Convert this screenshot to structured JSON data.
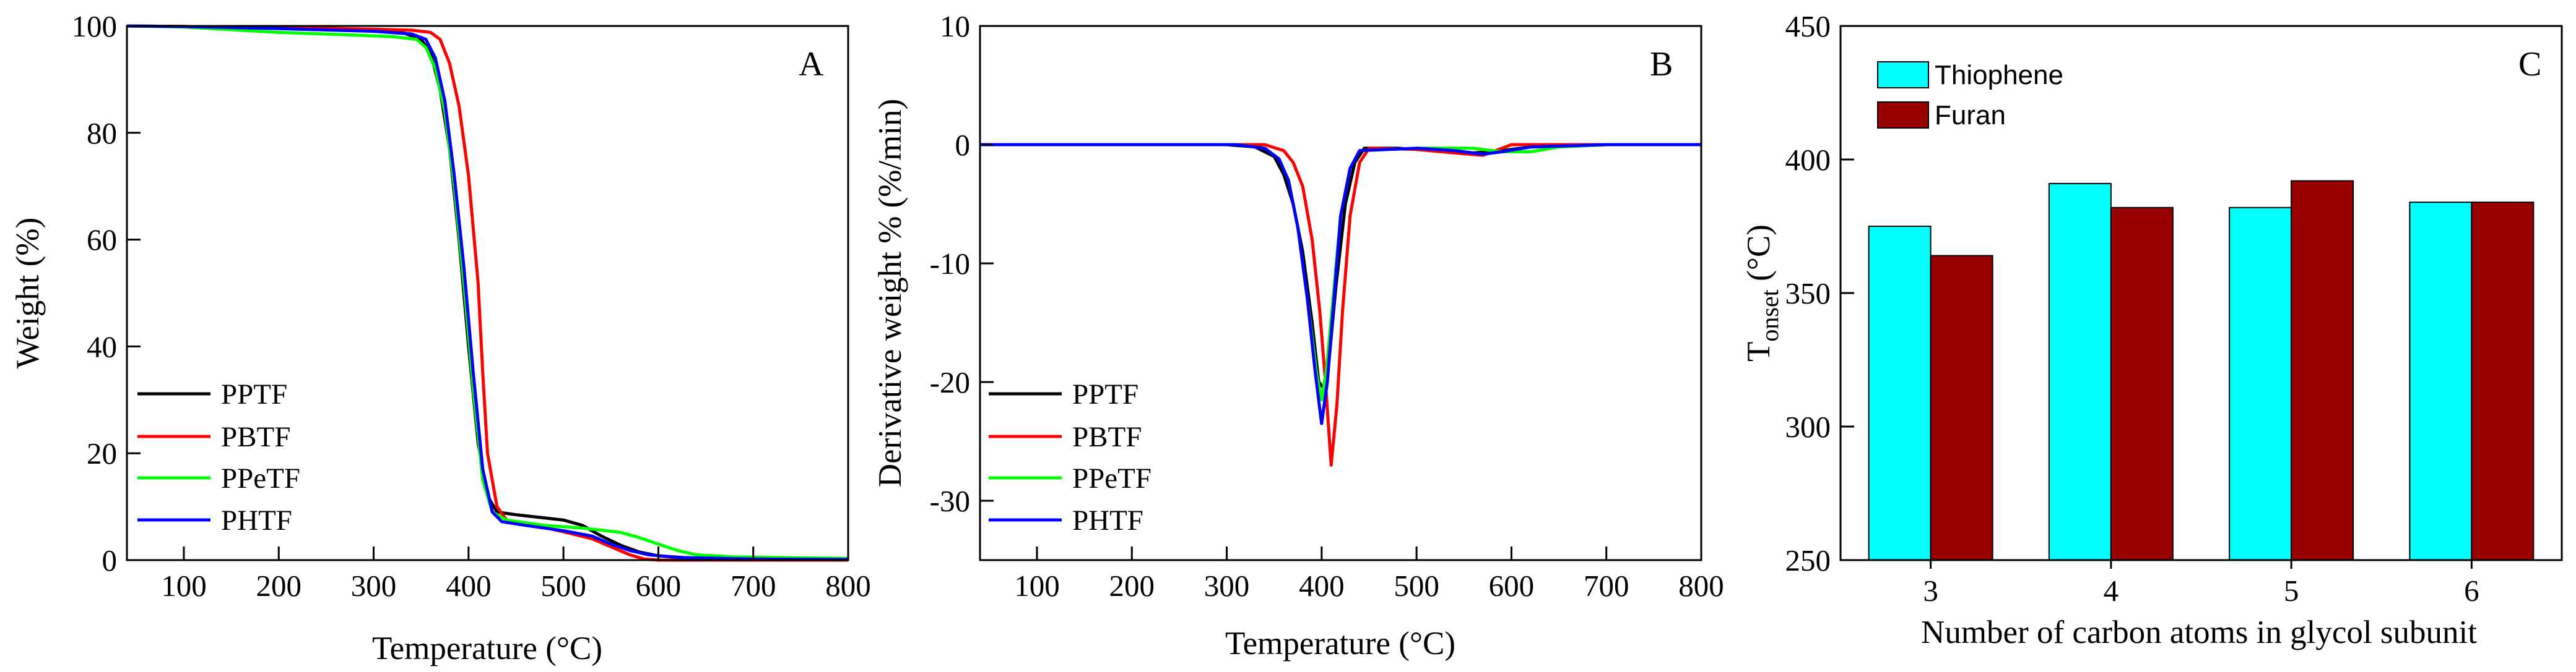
{
  "chart_data": [
    {
      "type": "line",
      "panel_label": "A",
      "xlabel": "Temperature (°C)",
      "ylabel": "Weight (%)",
      "xlim": [
        40,
        800
      ],
      "ylim": [
        0,
        100
      ],
      "xticks": [
        100,
        200,
        300,
        400,
        500,
        600,
        700,
        800
      ],
      "yticks": [
        0,
        20,
        40,
        60,
        80,
        100
      ],
      "legend": [
        "PPTF",
        "PBTF",
        "PPeTF",
        "PHTF"
      ],
      "series": [
        {
          "name": "PPTF",
          "color": "#000000",
          "points": [
            [
              40,
              100
            ],
            [
              100,
              99.9
            ],
            [
              200,
              99.6
            ],
            [
              300,
              99.2
            ],
            [
              330,
              98.8
            ],
            [
              350,
              97.5
            ],
            [
              360,
              95
            ],
            [
              370,
              88
            ],
            [
              380,
              77
            ],
            [
              390,
              60
            ],
            [
              400,
              40
            ],
            [
              410,
              22
            ],
            [
              420,
              12
            ],
            [
              430,
              9
            ],
            [
              450,
              8.5
            ],
            [
              500,
              7.5
            ],
            [
              520,
              6.5
            ],
            [
              540,
              4.5
            ],
            [
              560,
              2.8
            ],
            [
              580,
              1.5
            ],
            [
              600,
              0.8
            ],
            [
              650,
              0.2
            ],
            [
              800,
              0
            ]
          ]
        },
        {
          "name": "PBTF",
          "color": "#ff0000",
          "points": [
            [
              40,
              100
            ],
            [
              100,
              99.9
            ],
            [
              200,
              99.7
            ],
            [
              300,
              99.4
            ],
            [
              340,
              99.2
            ],
            [
              360,
              98.8
            ],
            [
              370,
              97.5
            ],
            [
              380,
              93
            ],
            [
              390,
              85
            ],
            [
              400,
              72
            ],
            [
              410,
              52
            ],
            [
              415,
              35
            ],
            [
              420,
              20
            ],
            [
              430,
              10
            ],
            [
              440,
              7.5
            ],
            [
              470,
              6.5
            ],
            [
              500,
              5.3
            ],
            [
              530,
              4
            ],
            [
              550,
              2.5
            ],
            [
              570,
              1
            ],
            [
              585,
              0.2
            ],
            [
              600,
              0
            ],
            [
              800,
              0
            ]
          ]
        },
        {
          "name": "PPeTF",
          "color": "#00ff00",
          "points": [
            [
              40,
              100
            ],
            [
              100,
              99.8
            ],
            [
              200,
              98.8
            ],
            [
              280,
              98.3
            ],
            [
              320,
              98
            ],
            [
              345,
              97.5
            ],
            [
              355,
              96
            ],
            [
              365,
              92
            ],
            [
              375,
              84
            ],
            [
              385,
              70
            ],
            [
              395,
              52
            ],
            [
              405,
              32
            ],
            [
              415,
              15
            ],
            [
              425,
              9
            ],
            [
              440,
              7.5
            ],
            [
              480,
              6.5
            ],
            [
              520,
              6
            ],
            [
              560,
              5.2
            ],
            [
              580,
              4.2
            ],
            [
              600,
              3
            ],
            [
              620,
              1.8
            ],
            [
              640,
              1
            ],
            [
              680,
              0.6
            ],
            [
              720,
              0.5
            ],
            [
              800,
              0.3
            ]
          ]
        },
        {
          "name": "PHTF",
          "color": "#0000ff",
          "points": [
            [
              40,
              100
            ],
            [
              100,
              99.9
            ],
            [
              200,
              99.5
            ],
            [
              300,
              99
            ],
            [
              340,
              98.5
            ],
            [
              355,
              97.5
            ],
            [
              365,
              94
            ],
            [
              375,
              86
            ],
            [
              385,
              72
            ],
            [
              395,
              55
            ],
            [
              405,
              35
            ],
            [
              415,
              17
            ],
            [
              425,
              9
            ],
            [
              435,
              7.2
            ],
            [
              460,
              6.5
            ],
            [
              500,
              5.5
            ],
            [
              530,
              4.5
            ],
            [
              550,
              3
            ],
            [
              570,
              1.8
            ],
            [
              590,
              1
            ],
            [
              620,
              0.5
            ],
            [
              700,
              0.2
            ],
            [
              800,
              0.1
            ]
          ]
        }
      ]
    },
    {
      "type": "line",
      "panel_label": "B",
      "xlabel": "Temperature (°C)",
      "ylabel": "Derivative weight % (%/min)",
      "xlim": [
        40,
        800
      ],
      "ylim": [
        -35,
        10
      ],
      "xticks": [
        100,
        200,
        300,
        400,
        500,
        600,
        700,
        800
      ],
      "yticks": [
        -30,
        -20,
        -10,
        0,
        10
      ],
      "legend": [
        "PPTF",
        "PBTF",
        "PPeTF",
        "PHTF"
      ],
      "series": [
        {
          "name": "PPTF",
          "color": "#000000",
          "points": [
            [
              40,
              0
            ],
            [
              300,
              0
            ],
            [
              330,
              -0.2
            ],
            [
              350,
              -1
            ],
            [
              360,
              -2.5
            ],
            [
              370,
              -5
            ],
            [
              380,
              -9
            ],
            [
              390,
              -15
            ],
            [
              397,
              -20
            ],
            [
              402,
              -20.5
            ],
            [
              408,
              -18
            ],
            [
              415,
              -12
            ],
            [
              425,
              -5
            ],
            [
              435,
              -1.5
            ],
            [
              445,
              -0.3
            ],
            [
              480,
              -0.3
            ],
            [
              520,
              -0.5
            ],
            [
              560,
              -0.7
            ],
            [
              590,
              -0.5
            ],
            [
              620,
              -0.2
            ],
            [
              700,
              0
            ],
            [
              800,
              0
            ]
          ]
        },
        {
          "name": "PBTF",
          "color": "#ff0000",
          "points": [
            [
              40,
              0
            ],
            [
              340,
              0
            ],
            [
              360,
              -0.5
            ],
            [
              370,
              -1.5
            ],
            [
              380,
              -3.5
            ],
            [
              390,
              -8
            ],
            [
              398,
              -14
            ],
            [
              404,
              -20
            ],
            [
              410,
              -27
            ],
            [
              416,
              -22
            ],
            [
              422,
              -14
            ],
            [
              430,
              -6
            ],
            [
              440,
              -1.5
            ],
            [
              450,
              -0.3
            ],
            [
              500,
              -0.4
            ],
            [
              540,
              -0.7
            ],
            [
              570,
              -0.9
            ],
            [
              590,
              -0.3
            ],
            [
              600,
              0
            ],
            [
              800,
              0
            ]
          ]
        },
        {
          "name": "PPeTF",
          "color": "#00ff00",
          "points": [
            [
              40,
              0
            ],
            [
              310,
              0
            ],
            [
              340,
              -0.3
            ],
            [
              355,
              -1.2
            ],
            [
              365,
              -3
            ],
            [
              375,
              -7
            ],
            [
              385,
              -13
            ],
            [
              395,
              -19.5
            ],
            [
              400,
              -21.5
            ],
            [
              405,
              -19
            ],
            [
              412,
              -13
            ],
            [
              420,
              -6
            ],
            [
              430,
              -2
            ],
            [
              440,
              -0.5
            ],
            [
              500,
              -0.3
            ],
            [
              560,
              -0.3
            ],
            [
              590,
              -0.6
            ],
            [
              620,
              -0.6
            ],
            [
              650,
              -0.2
            ],
            [
              700,
              0
            ],
            [
              800,
              0
            ]
          ]
        },
        {
          "name": "PHTF",
          "color": "#0000ff",
          "points": [
            [
              40,
              0
            ],
            [
              310,
              0
            ],
            [
              340,
              -0.3
            ],
            [
              355,
              -1.2
            ],
            [
              365,
              -3
            ],
            [
              375,
              -7
            ],
            [
              385,
              -13
            ],
            [
              393,
              -19
            ],
            [
              400,
              -23.5
            ],
            [
              406,
              -20
            ],
            [
              413,
              -13
            ],
            [
              420,
              -6
            ],
            [
              430,
              -2
            ],
            [
              440,
              -0.5
            ],
            [
              500,
              -0.3
            ],
            [
              540,
              -0.5
            ],
            [
              570,
              -0.8
            ],
            [
              590,
              -0.6
            ],
            [
              620,
              -0.2
            ],
            [
              700,
              0
            ],
            [
              800,
              0
            ]
          ]
        }
      ]
    },
    {
      "type": "bar",
      "panel_label": "C",
      "xlabel": "Number of carbon atoms in glycol subunit",
      "ylabel_main": "T",
      "ylabel_sub": "onset",
      "ylabel_unit": " (°C)",
      "ylim": [
        250,
        450
      ],
      "yticks": [
        250,
        300,
        350,
        400,
        450
      ],
      "categories": [
        "3",
        "4",
        "5",
        "6"
      ],
      "series": [
        {
          "name": "Thiophene",
          "color": "#00ffff",
          "values": [
            375,
            391,
            382,
            384
          ]
        },
        {
          "name": "Furan",
          "color": "#990000",
          "values": [
            364,
            382,
            392,
            384
          ]
        }
      ]
    }
  ]
}
